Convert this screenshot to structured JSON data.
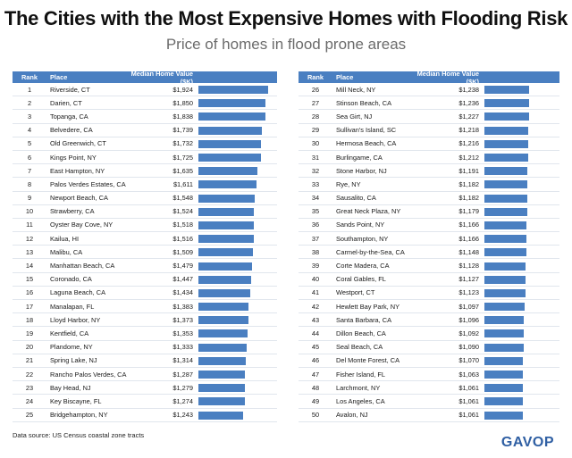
{
  "title": "The Cities with the Most Expensive Homes with Flooding Risk",
  "subtitle": "Price of homes in flood prone areas",
  "source": "Data source: US Census coastal zone tracts",
  "brand": "GAVOP",
  "colors": {
    "bar": "#4a7fc1",
    "header": "#4a7fc1",
    "brand": "#2f5fa3"
  },
  "headers": {
    "rank": "Rank",
    "place": "Place",
    "value": "Median Home Value ($K)"
  },
  "chart_data": {
    "type": "table",
    "value_max": 1924,
    "rows": [
      {
        "rank": "1",
        "place": "Riverside, CT",
        "value": 1924,
        "label": "$1,924"
      },
      {
        "rank": "2",
        "place": "Darien, CT",
        "value": 1850,
        "label": "$1,850"
      },
      {
        "rank": "3",
        "place": "Topanga, CA",
        "value": 1838,
        "label": "$1,838"
      },
      {
        "rank": "4",
        "place": "Belvedere, CA",
        "value": 1739,
        "label": "$1,739"
      },
      {
        "rank": "5",
        "place": "Old Greenwich, CT",
        "value": 1732,
        "label": "$1,732"
      },
      {
        "rank": "6",
        "place": "Kings Point, NY",
        "value": 1725,
        "label": "$1,725"
      },
      {
        "rank": "7",
        "place": "East Hampton, NY",
        "value": 1635,
        "label": "$1,635"
      },
      {
        "rank": "8",
        "place": "Palos Verdes Estates, CA",
        "value": 1611,
        "label": "$1,611"
      },
      {
        "rank": "9",
        "place": "Newport Beach, CA",
        "value": 1548,
        "label": "$1,548"
      },
      {
        "rank": "10",
        "place": "Strawberry, CA",
        "value": 1524,
        "label": "$1,524"
      },
      {
        "rank": "11",
        "place": "Oyster Bay Cove, NY",
        "value": 1518,
        "label": "$1,518"
      },
      {
        "rank": "12",
        "place": "Kailua, HI",
        "value": 1516,
        "label": "$1,516"
      },
      {
        "rank": "13",
        "place": "Malibu, CA",
        "value": 1509,
        "label": "$1,509"
      },
      {
        "rank": "14",
        "place": "Manhattan Beach, CA",
        "value": 1479,
        "label": "$1,479"
      },
      {
        "rank": "15",
        "place": "Coronado, CA",
        "value": 1447,
        "label": "$1,447"
      },
      {
        "rank": "16",
        "place": "Laguna Beach, CA",
        "value": 1434,
        "label": "$1,434"
      },
      {
        "rank": "17",
        "place": "Manalapan, FL",
        "value": 1383,
        "label": "$1,383"
      },
      {
        "rank": "18",
        "place": "Lloyd Harbor, NY",
        "value": 1373,
        "label": "$1,373"
      },
      {
        "rank": "19",
        "place": "Kentfield, CA",
        "value": 1353,
        "label": "$1,353"
      },
      {
        "rank": "20",
        "place": "Plandome, NY",
        "value": 1333,
        "label": "$1,333"
      },
      {
        "rank": "21",
        "place": "Spring Lake, NJ",
        "value": 1314,
        "label": "$1,314"
      },
      {
        "rank": "22",
        "place": "Rancho Palos Verdes, CA",
        "value": 1287,
        "label": "$1,287"
      },
      {
        "rank": "23",
        "place": "Bay Head, NJ",
        "value": 1279,
        "label": "$1,279"
      },
      {
        "rank": "24",
        "place": "Key Biscayne, FL",
        "value": 1274,
        "label": "$1,274"
      },
      {
        "rank": "25",
        "place": "Bridgehampton, NY",
        "value": 1243,
        "label": "$1,243"
      },
      {
        "rank": "26",
        "place": "Mill Neck, NY",
        "value": 1238,
        "label": "$1,238"
      },
      {
        "rank": "27",
        "place": "Stinson Beach, CA",
        "value": 1236,
        "label": "$1,236"
      },
      {
        "rank": "28",
        "place": "Sea Girt, NJ",
        "value": 1227,
        "label": "$1,227"
      },
      {
        "rank": "29",
        "place": "Sullivan's Island, SC",
        "value": 1218,
        "label": "$1,218"
      },
      {
        "rank": "30",
        "place": "Hermosa Beach, CA",
        "value": 1216,
        "label": "$1,216"
      },
      {
        "rank": "31",
        "place": "Burlingame, CA",
        "value": 1212,
        "label": "$1,212"
      },
      {
        "rank": "32",
        "place": "Stone Harbor, NJ",
        "value": 1191,
        "label": "$1,191"
      },
      {
        "rank": "33",
        "place": "Rye, NY",
        "value": 1182,
        "label": "$1,182"
      },
      {
        "rank": "34",
        "place": "Sausalito, CA",
        "value": 1182,
        "label": "$1,182"
      },
      {
        "rank": "35",
        "place": "Great Neck Plaza, NY",
        "value": 1179,
        "label": "$1,179"
      },
      {
        "rank": "36",
        "place": "Sands Point, NY",
        "value": 1166,
        "label": "$1,166"
      },
      {
        "rank": "37",
        "place": "Southampton, NY",
        "value": 1166,
        "label": "$1,166"
      },
      {
        "rank": "38",
        "place": "Carmel-by-the-Sea, CA",
        "value": 1148,
        "label": "$1,148"
      },
      {
        "rank": "39",
        "place": "Corte Madera, CA",
        "value": 1128,
        "label": "$1,128"
      },
      {
        "rank": "40",
        "place": "Coral Gables, FL",
        "value": 1127,
        "label": "$1,127"
      },
      {
        "rank": "41",
        "place": "Westport, CT",
        "value": 1123,
        "label": "$1,123"
      },
      {
        "rank": "42",
        "place": "Hewlett Bay Park, NY",
        "value": 1097,
        "label": "$1,097"
      },
      {
        "rank": "43",
        "place": "Santa Barbara, CA",
        "value": 1096,
        "label": "$1,096"
      },
      {
        "rank": "44",
        "place": "Dillon Beach, CA",
        "value": 1092,
        "label": "$1,092"
      },
      {
        "rank": "45",
        "place": "Seal Beach, CA",
        "value": 1090,
        "label": "$1,090"
      },
      {
        "rank": "46",
        "place": "Del Monte Forest, CA",
        "value": 1070,
        "label": "$1,070"
      },
      {
        "rank": "47",
        "place": "Fisher Island, FL",
        "value": 1063,
        "label": "$1,063"
      },
      {
        "rank": "48",
        "place": "Larchmont, NY",
        "value": 1061,
        "label": "$1,061"
      },
      {
        "rank": "49",
        "place": "Los Angeles, CA",
        "value": 1061,
        "label": "$1,061"
      },
      {
        "rank": "50",
        "place": "Avalon, NJ",
        "value": 1061,
        "label": "$1,061"
      }
    ]
  }
}
